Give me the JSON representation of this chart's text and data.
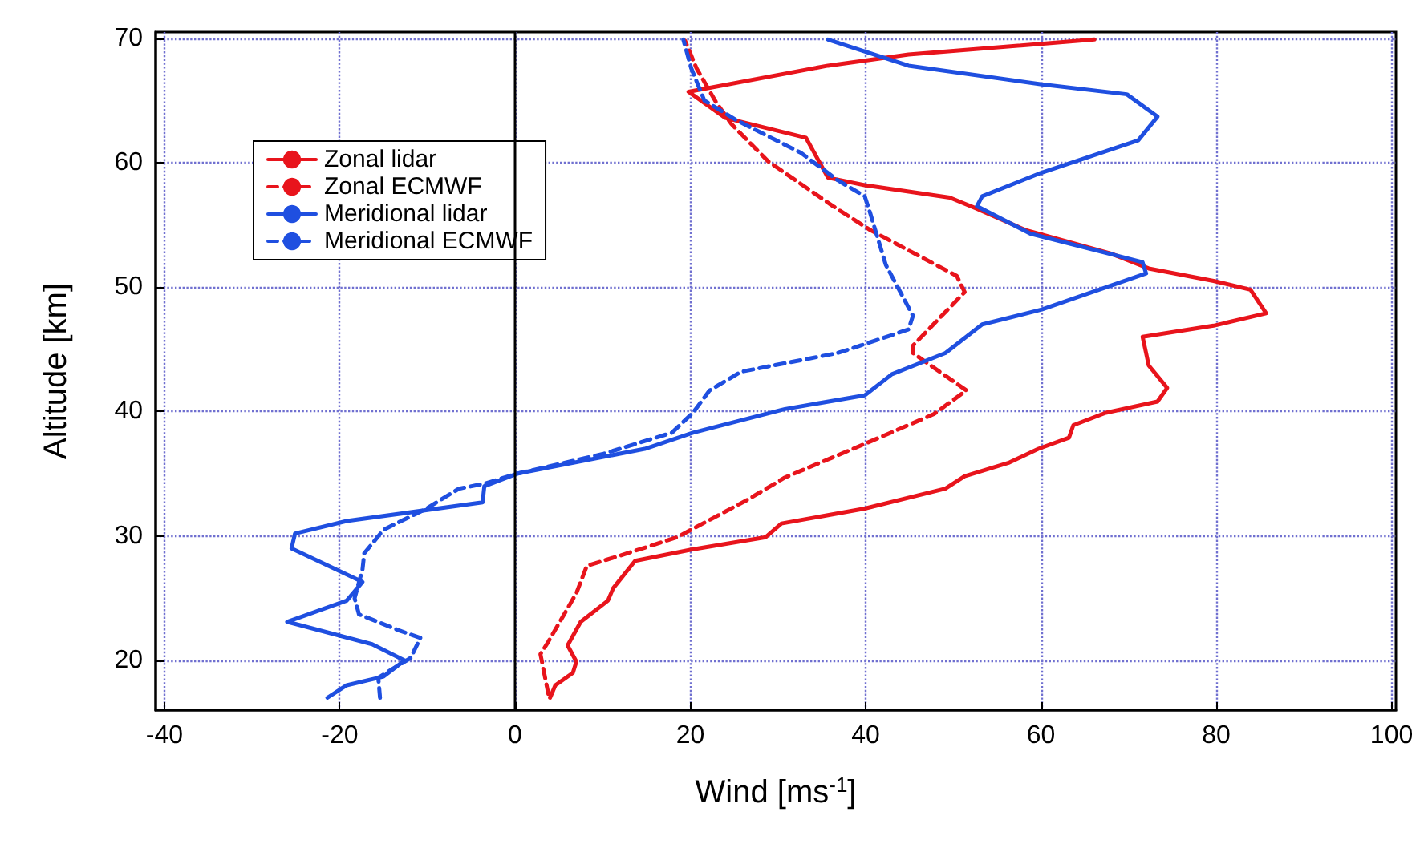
{
  "chart_data": {
    "type": "line",
    "xlabel": "Wind [ms$^{-1}$]",
    "ylabel": "Altitude [km]",
    "xlim": [
      -41,
      100.5
    ],
    "ylim": [
      16,
      70.5
    ],
    "xticks": [
      -40,
      -20,
      0,
      20,
      40,
      60,
      80,
      100
    ],
    "yticks": [
      20,
      30,
      40,
      50,
      60,
      70
    ],
    "grid": true,
    "legend": "top left",
    "marker": "none",
    "ref_lines": [
      {
        "axis": "x",
        "value": 0,
        "color": "#000000"
      }
    ],
    "series": [
      {
        "name": "Zonal lidar",
        "color": "#e8141c",
        "line_style": "solid",
        "x": [
          4.0,
          4.6,
          6.6,
          7.0,
          6.0,
          7.5,
          10.6,
          11.2,
          13.7,
          20.1,
          28.6,
          30.4,
          39.9,
          49.1,
          51.3,
          56.4,
          59.7,
          63.2,
          63.7,
          67.4,
          73.3,
          74.4,
          72.3,
          72.0,
          71.6,
          79.7,
          85.7,
          83.9,
          79.7,
          72.3,
          68.0,
          58.2,
          52.7,
          49.6,
          39.9,
          35.7,
          33.2,
          24.0,
          19.8,
          35.7,
          44.9,
          66.1
        ],
        "values": [
          17.0,
          18.0,
          19.0,
          19.9,
          21.2,
          23.1,
          24.8,
          25.8,
          28.0,
          28.9,
          29.9,
          31.0,
          32.2,
          33.8,
          34.8,
          35.9,
          37.0,
          37.9,
          38.9,
          39.9,
          40.8,
          41.9,
          43.7,
          44.7,
          46.0,
          46.9,
          47.9,
          49.8,
          50.5,
          51.5,
          52.7,
          54.6,
          56.3,
          57.2,
          58.2,
          58.8,
          62.0,
          63.6,
          65.7,
          67.8,
          68.7,
          69.9
        ]
      },
      {
        "name": "Zonal ECMWF",
        "color": "#e8141c",
        "line_style": "dashed",
        "x": [
          3.8,
          2.9,
          3.8,
          7.0,
          8.2,
          11.9,
          18.5,
          26.5,
          30.8,
          39.9,
          47.8,
          51.5,
          45.4,
          45.4,
          51.3,
          50.4,
          40.5,
          36.3,
          28.9,
          24.7,
          22.9,
          20.7,
          19.4
        ],
        "values": [
          17.3,
          20.5,
          21.5,
          25.4,
          27.6,
          28.4,
          29.9,
          32.9,
          34.7,
          37.4,
          39.8,
          41.7,
          44.7,
          45.3,
          49.6,
          50.9,
          54.6,
          56.5,
          60.1,
          63.1,
          64.9,
          67.6,
          69.8
        ]
      },
      {
        "name": "Meridional lidar",
        "color": "#1f4fe0",
        "line_style": "solid",
        "x": [
          -21.4,
          -19.2,
          -15.0,
          -12.6,
          -16.3,
          -26.0,
          -19.2,
          -17.4,
          -25.5,
          -25.1,
          -19.2,
          -3.7,
          -3.5,
          0.2,
          14.8,
          20.3,
          30.8,
          39.9,
          43.0,
          49.1,
          53.3,
          60.1,
          72.0,
          71.6,
          58.8,
          52.7,
          53.3,
          59.7,
          71.1,
          73.3,
          69.8,
          60.1,
          44.9,
          35.7
        ],
        "values": [
          17.0,
          18.0,
          18.7,
          20.0,
          21.3,
          23.1,
          24.8,
          26.3,
          29.0,
          30.2,
          31.2,
          32.7,
          34.0,
          35.0,
          37.0,
          38.3,
          40.2,
          41.3,
          43.0,
          44.7,
          47.0,
          48.2,
          51.1,
          52.0,
          54.3,
          56.5,
          57.3,
          59.1,
          61.8,
          63.7,
          65.5,
          66.3,
          67.8,
          69.9
        ]
      },
      {
        "name": "Meridional ECMWF",
        "color": "#1f4fe0",
        "line_style": "dashed",
        "x": [
          -15.4,
          -15.6,
          -11.9,
          -10.8,
          -13.2,
          -17.8,
          -18.3,
          -17.4,
          -17.2,
          -15.0,
          -10.1,
          -6.4,
          -3.5,
          0.2,
          10.1,
          17.9,
          20.3,
          22.2,
          25.8,
          36.8,
          39.4,
          44.9,
          45.4,
          42.3,
          40.5,
          39.9,
          36.8,
          32.6,
          25.3,
          21.6,
          20.1,
          19.2
        ],
        "values": [
          17.0,
          18.6,
          20.2,
          21.8,
          22.4,
          23.7,
          25.0,
          27.3,
          28.6,
          30.5,
          32.2,
          33.8,
          34.2,
          35.0,
          36.6,
          38.3,
          39.9,
          41.7,
          43.2,
          44.7,
          45.3,
          46.6,
          47.7,
          51.8,
          56.0,
          57.3,
          58.6,
          60.8,
          63.4,
          65.0,
          67.6,
          69.9
        ]
      }
    ]
  }
}
